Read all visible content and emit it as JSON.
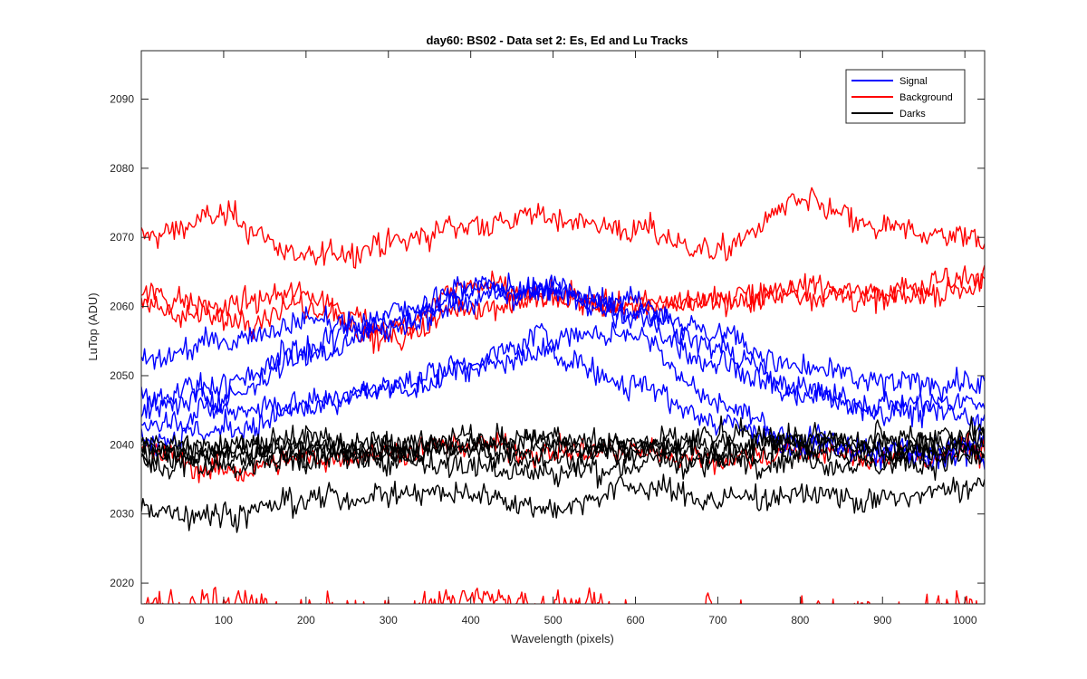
{
  "chart_data": {
    "type": "line",
    "title": "day60: BS02 - Data set 2: Es, Ed and Lu Tracks",
    "xlabel": "Wavelength (pixels)",
    "ylabel": "LuTop (ADU)",
    "xlim": [
      0,
      1024
    ],
    "ylim": [
      2017,
      2097
    ],
    "x_ticks": [
      0,
      100,
      200,
      300,
      400,
      500,
      600,
      700,
      800,
      900,
      1000
    ],
    "y_ticks": [
      2020,
      2030,
      2040,
      2050,
      2060,
      2070,
      2080,
      2090
    ],
    "grid": false,
    "legend": {
      "position": "top-right",
      "entries": [
        {
          "label": "Signal",
          "color": "#0000ff"
        },
        {
          "label": "Background",
          "color": "#ff0000"
        },
        {
          "label": "Darks",
          "color": "#000000"
        }
      ]
    },
    "x_knots": [
      0,
      100,
      200,
      300,
      400,
      500,
      600,
      700,
      800,
      900,
      1024
    ],
    "series": [
      {
        "group": "Signal",
        "color": "#0000ff",
        "values": [
          2045,
          2047,
          2053,
          2057,
          2062,
          2062,
          2061,
          2056,
          2051,
          2049,
          2049
        ]
      },
      {
        "group": "Signal",
        "color": "#0000ff",
        "values": [
          2052,
          2055,
          2058,
          2057,
          2061,
          2063,
          2058,
          2052,
          2047,
          2046,
          2046
        ]
      },
      {
        "group": "Signal",
        "color": "#0000ff",
        "values": [
          2047,
          2049,
          2054,
          2059,
          2063,
          2062,
          2059,
          2054,
          2048,
          2045,
          2044
        ]
      },
      {
        "group": "Signal",
        "color": "#0000ff",
        "values": [
          2043,
          2045,
          2046,
          2048,
          2052,
          2056,
          2056,
          2046,
          2041,
          2039,
          2039
        ]
      },
      {
        "group": "Signal",
        "color": "#0000ff",
        "values": [
          2041,
          2042,
          2045,
          2048,
          2051,
          2053,
          2049,
          2043,
          2040,
          2039,
          2040
        ]
      },
      {
        "group": "Background",
        "color": "#ff0000",
        "values": [
          2070,
          2073,
          2067,
          2069,
          2072,
          2073,
          2071,
          2068,
          2075,
          2071,
          2070
        ]
      },
      {
        "group": "Background",
        "color": "#ff0000",
        "values": [
          2062,
          2060,
          2062,
          2055,
          2060,
          2061,
          2060,
          2061,
          2062,
          2061,
          2063
        ]
      },
      {
        "group": "Background",
        "color": "#ff0000",
        "values": [
          2060,
          2058,
          2060,
          2057,
          2063,
          2061,
          2060,
          2061,
          2063,
          2062,
          2065
        ]
      },
      {
        "group": "Background",
        "color": "#ff0000",
        "values": [
          2039,
          2036,
          2038,
          2039,
          2040,
          2039,
          2039,
          2038,
          2039,
          2038,
          2039
        ]
      },
      {
        "group": "Background",
        "color": "#ff0000",
        "values": [
          2017,
          2017,
          2016,
          2016,
          2018,
          2017,
          2016,
          2016,
          2016,
          2016,
          2017
        ]
      },
      {
        "group": "Darks",
        "color": "#000000",
        "values": [
          2031,
          2030,
          2032,
          2033,
          2033,
          2031,
          2034,
          2032,
          2033,
          2032,
          2034
        ]
      },
      {
        "group": "Darks",
        "color": "#000000",
        "values": [
          2038,
          2039,
          2039,
          2039,
          2040,
          2040,
          2039,
          2040,
          2040,
          2039,
          2040
        ]
      },
      {
        "group": "Darks",
        "color": "#000000",
        "values": [
          2040,
          2040,
          2041,
          2040,
          2041,
          2040,
          2040,
          2041,
          2041,
          2040,
          2041
        ]
      },
      {
        "group": "Darks",
        "color": "#000000",
        "values": [
          2039,
          2038,
          2039,
          2039,
          2039,
          2038,
          2039,
          2038,
          2039,
          2039,
          2039
        ]
      },
      {
        "group": "Darks",
        "color": "#000000",
        "values": [
          2040,
          2039,
          2040,
          2039,
          2040,
          2041,
          2040,
          2039,
          2041,
          2041,
          2042
        ]
      },
      {
        "group": "Darks",
        "color": "#000000",
        "values": [
          2037,
          2037,
          2038,
          2038,
          2037,
          2036,
          2037,
          2038,
          2038,
          2037,
          2038
        ]
      }
    ]
  }
}
